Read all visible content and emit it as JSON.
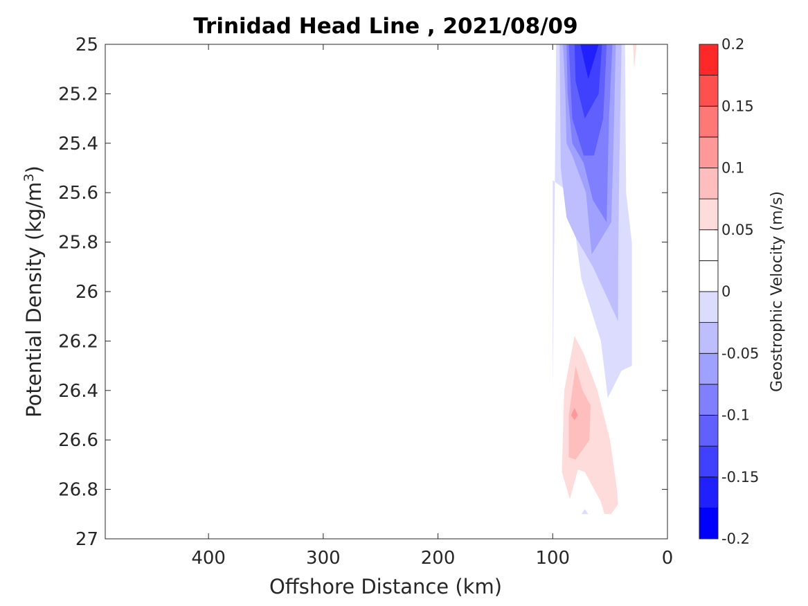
{
  "chart_data": {
    "type": "contour",
    "title": "Trinidad Head Line , 2021/08/09",
    "xlabel": "Offshore Distance (km)",
    "ylabel": "Potential Density (kg/m",
    "ylabel_sup": "3",
    "ylabel_end": ")",
    "xlim": [
      490,
      0
    ],
    "ylim": [
      25,
      27
    ],
    "x_reversed": true,
    "y_reversed": true,
    "xticks": [
      400,
      300,
      200,
      100,
      0
    ],
    "xtick_labels": [
      "400",
      "300",
      "200",
      "100",
      "0"
    ],
    "yticks": [
      25,
      25.2,
      25.4,
      25.6,
      25.8,
      26,
      26.2,
      26.4,
      26.6,
      26.8,
      27
    ],
    "ytick_labels": [
      "25",
      "25.2",
      "25.4",
      "25.6",
      "25.8",
      "26",
      "26.2",
      "26.4",
      "26.6",
      "26.8",
      "27"
    ],
    "colorbar": {
      "label": "Geostrophic Velocity (m/s)",
      "range": [
        -0.2,
        0.2
      ],
      "levels": [
        -0.2,
        -0.175,
        -0.15,
        -0.125,
        -0.1,
        -0.075,
        -0.05,
        -0.025,
        0,
        0.025,
        0.05,
        0.075,
        0.1,
        0.125,
        0.15,
        0.175,
        0.2
      ],
      "colors": [
        "#0000ff",
        "#2020ff",
        "#4040ff",
        "#6060ff",
        "#8080ff",
        "#a0a0ff",
        "#bebeff",
        "#dcdcff",
        "#ffffff",
        "#ffffff",
        "#ffdcdc",
        "#ffbebe",
        "#ff9898",
        "#ff7878",
        "#ff5050",
        "#ff2828"
      ],
      "ticks": [
        0.2,
        0.15,
        0.1,
        0.05,
        0,
        -0.05,
        -0.1,
        -0.15,
        -0.2
      ],
      "tick_labels": [
        "0.2",
        "0.15",
        "0.1",
        "0.05",
        "0",
        "-0.05",
        "-0.1",
        "-0.15",
        "-0.2"
      ]
    },
    "regions": [
      {
        "level": -0.025,
        "color": "#dcdcff",
        "points": [
          [
            97,
            25
          ],
          [
            37,
            25
          ],
          [
            36,
            25.6
          ],
          [
            31,
            25.8
          ],
          [
            31,
            26.3
          ],
          [
            40,
            26.32
          ],
          [
            52,
            26.43
          ],
          [
            58,
            26.2
          ],
          [
            75,
            25.95
          ],
          [
            85,
            25.6
          ],
          [
            100,
            25.55
          ],
          [
            100,
            26.4
          ]
        ]
      },
      {
        "level": -0.05,
        "color": "#bebeff",
        "points": [
          [
            94,
            25
          ],
          [
            40,
            25
          ],
          [
            42,
            25.5
          ],
          [
            43,
            25.9
          ],
          [
            43,
            26.12
          ],
          [
            48,
            26.07
          ],
          [
            65,
            25.9
          ],
          [
            80,
            25.78
          ],
          [
            88,
            25.7
          ],
          [
            93,
            25.5
          ]
        ]
      },
      {
        "level": -0.075,
        "color": "#a0a0ff",
        "points": [
          [
            91,
            25
          ],
          [
            45,
            25
          ],
          [
            47,
            25.4
          ],
          [
            49,
            25.72
          ],
          [
            66,
            25.85
          ],
          [
            71,
            25.6
          ],
          [
            83,
            25.45
          ],
          [
            88,
            25.4
          ],
          [
            89,
            25.2
          ]
        ]
      },
      {
        "level": -0.1,
        "color": "#8080ff",
        "points": [
          [
            88,
            25
          ],
          [
            48,
            25
          ],
          [
            51,
            25.3
          ],
          [
            53,
            25.72
          ],
          [
            65,
            25.63
          ],
          [
            73,
            25.48
          ],
          [
            83,
            25.4
          ],
          [
            87,
            25.2
          ]
        ]
      },
      {
        "level": -0.125,
        "color": "#6060ff",
        "points": [
          [
            86,
            25
          ],
          [
            53,
            25
          ],
          [
            56,
            25.3
          ],
          [
            64,
            25.45
          ],
          [
            73,
            25.45
          ],
          [
            83,
            25.3
          ],
          [
            84,
            25.2
          ]
        ]
      },
      {
        "level": -0.15,
        "color": "#4040ff",
        "points": [
          [
            81,
            25
          ],
          [
            57,
            25
          ],
          [
            60,
            25.2
          ],
          [
            72,
            25.3
          ],
          [
            80,
            25.15
          ]
        ]
      },
      {
        "level": -0.175,
        "color": "#2020ff",
        "points": [
          [
            76,
            25
          ],
          [
            60,
            25
          ],
          [
            69,
            25.14
          ]
        ]
      },
      {
        "level": 0.025,
        "color": "#ffdcdc",
        "points": [
          [
            30,
            25
          ],
          [
            27,
            25
          ],
          [
            29,
            25.1
          ]
        ]
      },
      {
        "level": 0.025,
        "color": "#ffdcdc",
        "points": [
          [
            81,
            26.18
          ],
          [
            90,
            26.4
          ],
          [
            92,
            26.73
          ],
          [
            85,
            26.84
          ],
          [
            78,
            26.72
          ],
          [
            72,
            26.73
          ],
          [
            58,
            26.85
          ],
          [
            55,
            26.9
          ],
          [
            49,
            26.9
          ],
          [
            43,
            26.86
          ],
          [
            44,
            26.8
          ],
          [
            50,
            26.6
          ],
          [
            61,
            26.4
          ],
          [
            73,
            26.25
          ]
        ]
      },
      {
        "level": 0.05,
        "color": "#ffbebe",
        "points": [
          [
            80,
            26.3
          ],
          [
            86,
            26.5
          ],
          [
            86,
            26.67
          ],
          [
            80,
            26.68
          ],
          [
            68,
            26.6
          ],
          [
            67,
            26.46
          ],
          [
            74,
            26.4
          ]
        ]
      },
      {
        "level": 0.075,
        "color": "#ff9898",
        "points": [
          [
            81,
            26.47
          ],
          [
            84,
            26.5
          ],
          [
            81,
            26.52
          ],
          [
            78,
            26.5
          ]
        ]
      },
      {
        "level": -0.025,
        "color": "#dcdcff",
        "points": [
          [
            72,
            26.88
          ],
          [
            69,
            26.9
          ],
          [
            75,
            26.9
          ]
        ]
      }
    ]
  }
}
